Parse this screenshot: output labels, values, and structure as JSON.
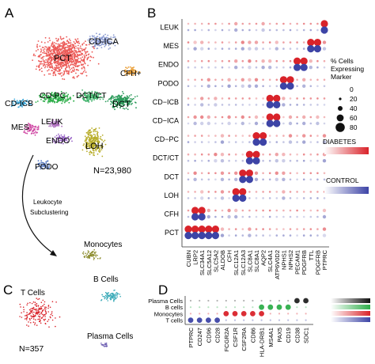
{
  "panels": {
    "A": "A",
    "B": "B",
    "C": "C",
    "D": "D"
  },
  "panel_a": {
    "clusters": [
      {
        "name": "PCT",
        "color": "#ec5a57"
      },
      {
        "name": "CD-ICA",
        "color": "#8a9bd1"
      },
      {
        "name": "CFH+",
        "color": "#e89a2f"
      },
      {
        "name": "CD-PC",
        "color": "#2fae4b"
      },
      {
        "name": "DCT/CT",
        "color": "#3fb26a"
      },
      {
        "name": "DCT",
        "color": "#2b9a5a"
      },
      {
        "name": "CD-ICB",
        "color": "#3aa6d8"
      },
      {
        "name": "LEUK",
        "color": "#b06fc0"
      },
      {
        "name": "MES",
        "color": "#d04aa5"
      },
      {
        "name": "ENDO",
        "color": "#9b67c9"
      },
      {
        "name": "LOH",
        "color": "#b8ad2a"
      },
      {
        "name": "PODO",
        "color": "#5a7cc4"
      }
    ],
    "n_label": "N=23,980",
    "arrow_text": [
      "Leukocyte",
      "Subclustering"
    ]
  },
  "panel_b": {
    "rows": [
      "LEUK",
      "MES",
      "ENDO",
      "PODO",
      "CD−ICB",
      "CD−ICA",
      "CD−PC",
      "DCT/CT",
      "DCT",
      "LOH",
      "CFH",
      "PCT"
    ],
    "genes": [
      "CUBN",
      "LRP2",
      "SLC34A1",
      "SLC5A12",
      "SLC5A2",
      "ALDOB",
      "CFH",
      "SLC12A1",
      "SLC12A3",
      "SLC8A1",
      "SLC8A1",
      "AQP2",
      "SLC4A1",
      "ATP6V0D2",
      "NPHS1",
      "NPHS2",
      "PECAM1",
      "PDGFRB",
      "TTL",
      "PDGFRB",
      "PTPRC"
    ],
    "legend": {
      "size_title": [
        "% Cells",
        "Expressing",
        "Marker"
      ],
      "size_values": [
        "0",
        "20",
        "40",
        "60",
        "80"
      ],
      "diabetes": "DIABETES",
      "control": "CONTROL"
    },
    "colors": {
      "diabetes": "#d9232a",
      "control": "#3d44a6"
    }
  },
  "panel_c": {
    "labels": {
      "monocytes": "Monocytes",
      "b_cells": "B Cells",
      "t_cells": "T Cells",
      "plasma": "Plasma Cells"
    },
    "n_label": "N=357"
  },
  "panel_d": {
    "rows": [
      "Plasma Cells",
      "B cells",
      "Monocytes",
      "T cells"
    ],
    "genes": [
      "PTPRC",
      "CD247",
      "CD96",
      "CD28",
      "FCGR2A",
      "CSF1R",
      "CSF2RA",
      "CD86",
      "HLA-DRB1",
      "MS4A1",
      "PAX5",
      "CD19",
      "CD38",
      "SDC1"
    ],
    "row_colors": [
      "#222222",
      "#2fae4b",
      "#d9232a",
      "#3d44a6"
    ]
  }
}
